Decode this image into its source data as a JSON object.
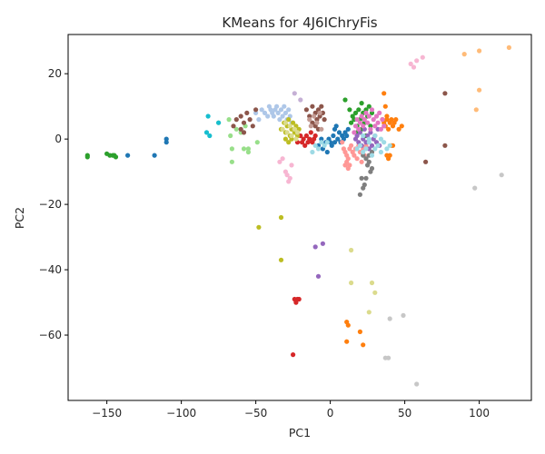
{
  "chart_data": {
    "type": "scatter",
    "title": "KMeans for 4J6IChryFis",
    "xlabel": "PC1",
    "ylabel": "PC2",
    "xlim": [
      -176,
      135
    ],
    "ylim": [
      -80,
      32
    ],
    "xticks": [
      -150,
      -100,
      -50,
      0,
      50,
      100
    ],
    "yticks": [
      -60,
      -40,
      -20,
      0,
      20
    ],
    "grid": false,
    "legend": "none",
    "series": [
      {
        "color": "#1f77b4",
        "points": [
          [
            -136,
            -5
          ],
          [
            -118,
            -5
          ],
          [
            -110,
            -1
          ],
          [
            -110,
            0
          ],
          [
            -8,
            -2
          ],
          [
            -6,
            0
          ],
          [
            -5,
            -3
          ],
          [
            -3,
            -1
          ],
          [
            -2,
            -4
          ],
          [
            -1,
            0
          ],
          [
            0,
            -1
          ],
          [
            1,
            -2
          ],
          [
            2,
            1
          ],
          [
            3,
            -1
          ],
          [
            3,
            3
          ],
          [
            4,
            4
          ],
          [
            5,
            0
          ],
          [
            6,
            2
          ],
          [
            7,
            -1
          ],
          [
            8,
            1
          ],
          [
            9,
            0
          ],
          [
            10,
            2
          ],
          [
            11,
            1
          ],
          [
            12,
            3
          ]
        ]
      },
      {
        "color": "#aec7e8",
        "points": [
          [
            -50,
            8
          ],
          [
            -48,
            6
          ],
          [
            -46,
            9
          ],
          [
            -44,
            8
          ],
          [
            -42,
            7
          ],
          [
            -41,
            10
          ],
          [
            -40,
            9
          ],
          [
            -39,
            8
          ],
          [
            -38,
            7
          ],
          [
            -37,
            9
          ],
          [
            -36,
            10
          ],
          [
            -35,
            8
          ],
          [
            -34,
            6
          ],
          [
            -33,
            9
          ],
          [
            -32,
            7
          ],
          [
            -31,
            10
          ],
          [
            -30,
            8
          ],
          [
            -29,
            6
          ],
          [
            -28,
            9
          ],
          [
            -27,
            7
          ],
          [
            -26,
            5
          ]
        ]
      },
      {
        "color": "#ff7f0e",
        "points": [
          [
            11,
            -56
          ],
          [
            12,
            -57
          ],
          [
            11,
            -62
          ],
          [
            20,
            -59
          ],
          [
            22,
            -63
          ],
          [
            36,
            14
          ],
          [
            37,
            10
          ],
          [
            38,
            7
          ],
          [
            35,
            6
          ],
          [
            36,
            5
          ],
          [
            37,
            4
          ],
          [
            38,
            6
          ],
          [
            39,
            3
          ],
          [
            40,
            5
          ],
          [
            41,
            6
          ],
          [
            42,
            4
          ],
          [
            43,
            5
          ],
          [
            44,
            6
          ],
          [
            46,
            3
          ],
          [
            48,
            4
          ],
          [
            38,
            -5
          ],
          [
            39,
            -6
          ],
          [
            40,
            -5
          ],
          [
            41,
            -2
          ],
          [
            42,
            -2
          ]
        ]
      },
      {
        "color": "#ffbb78",
        "points": [
          [
            90,
            26
          ],
          [
            100,
            27
          ],
          [
            120,
            28
          ],
          [
            100,
            15
          ],
          [
            98,
            9
          ]
        ]
      },
      {
        "color": "#2ca02c",
        "points": [
          [
            -163,
            -5
          ],
          [
            -163,
            -5.5
          ],
          [
            -150,
            -4.5
          ],
          [
            -148,
            -5
          ],
          [
            -146,
            -5
          ],
          [
            -145,
            -5
          ],
          [
            -144,
            -5.5
          ],
          [
            10,
            12
          ],
          [
            13,
            9
          ],
          [
            14,
            5
          ],
          [
            15,
            7
          ],
          [
            16,
            6
          ],
          [
            17,
            8
          ],
          [
            18,
            4
          ],
          [
            19,
            9
          ],
          [
            20,
            6
          ],
          [
            21,
            11
          ],
          [
            22,
            8
          ],
          [
            23,
            5
          ],
          [
            24,
            9
          ],
          [
            25,
            7
          ],
          [
            26,
            10
          ],
          [
            27,
            4
          ],
          [
            28,
            8
          ],
          [
            18,
            2
          ],
          [
            21,
            3
          ],
          [
            24,
            1
          ]
        ]
      },
      {
        "color": "#98df8a",
        "points": [
          [
            -75,
            5
          ],
          [
            -68,
            6
          ],
          [
            -67,
            1
          ],
          [
            -66,
            -3
          ],
          [
            -66,
            -7
          ],
          [
            -63,
            3
          ],
          [
            -60,
            2
          ],
          [
            -58,
            -3
          ],
          [
            -57,
            4
          ],
          [
            -55,
            -3
          ],
          [
            -55,
            -4
          ],
          [
            -49,
            -1
          ]
        ]
      },
      {
        "color": "#d62728",
        "points": [
          [
            -24,
            -49
          ],
          [
            -23,
            -50
          ],
          [
            -22,
            -49
          ],
          [
            -21,
            -49
          ],
          [
            -25,
            -66
          ],
          [
            -22,
            -1
          ],
          [
            -20,
            1
          ],
          [
            -19,
            -1
          ],
          [
            -18,
            0
          ],
          [
            -17,
            -2
          ],
          [
            -16,
            1
          ],
          [
            -15,
            -1
          ],
          [
            -14,
            0
          ],
          [
            -13,
            2
          ],
          [
            -12,
            -1
          ],
          [
            -11,
            0
          ],
          [
            -10,
            1
          ]
        ]
      },
      {
        "color": "#ff9896",
        "points": [
          [
            8,
            -1
          ],
          [
            9,
            -3
          ],
          [
            10,
            -4
          ],
          [
            11,
            -5
          ],
          [
            12,
            -6
          ],
          [
            13,
            -3
          ],
          [
            14,
            -2
          ],
          [
            15,
            -4
          ],
          [
            16,
            -5
          ],
          [
            17,
            -3
          ],
          [
            18,
            -6
          ],
          [
            19,
            -2
          ],
          [
            20,
            -4
          ],
          [
            21,
            -7
          ],
          [
            22,
            -3
          ],
          [
            23,
            -5
          ],
          [
            24,
            -2
          ],
          [
            10,
            -8
          ],
          [
            11,
            -7
          ],
          [
            12,
            -9
          ],
          [
            13,
            -8
          ]
        ]
      },
      {
        "color": "#9467bd",
        "points": [
          [
            -10,
            -33
          ],
          [
            -5,
            -32
          ],
          [
            -8,
            -42
          ],
          [
            17,
            0
          ],
          [
            18,
            1
          ],
          [
            19,
            -1
          ],
          [
            20,
            2
          ],
          [
            21,
            -2
          ],
          [
            22,
            0
          ],
          [
            23,
            3
          ],
          [
            24,
            -1
          ],
          [
            25,
            1
          ],
          [
            26,
            -3
          ],
          [
            27,
            2
          ],
          [
            28,
            -2
          ],
          [
            29,
            0
          ],
          [
            30,
            1
          ],
          [
            31,
            -1
          ],
          [
            32,
            3
          ],
          [
            33,
            -2
          ]
        ]
      },
      {
        "color": "#c5b0d5",
        "points": [
          [
            -24,
            14
          ],
          [
            -20,
            12
          ]
        ]
      },
      {
        "color": "#8c564b",
        "points": [
          [
            77,
            14
          ],
          [
            77,
            -2
          ],
          [
            64,
            -7
          ],
          [
            -65,
            4
          ],
          [
            -63,
            6
          ],
          [
            -60,
            7
          ],
          [
            -58,
            5
          ],
          [
            -56,
            8
          ],
          [
            -54,
            6
          ],
          [
            -52,
            4
          ],
          [
            -50,
            9
          ],
          [
            -60,
            3
          ],
          [
            -58,
            2
          ],
          [
            -16,
            9
          ],
          [
            -14,
            7
          ],
          [
            -12,
            10
          ],
          [
            -10,
            8
          ],
          [
            -9,
            6
          ],
          [
            -8,
            9
          ],
          [
            -7,
            7
          ],
          [
            -6,
            10
          ],
          [
            -5,
            8
          ],
          [
            -4,
            6
          ],
          [
            -12,
            5
          ],
          [
            -10,
            4
          ],
          [
            -8,
            3
          ]
        ]
      },
      {
        "color": "#c49c94",
        "points": [
          [
            -14,
            6
          ],
          [
            -13,
            4
          ],
          [
            -11,
            7
          ],
          [
            -9,
            5
          ],
          [
            -7,
            8
          ],
          [
            -6,
            3
          ]
        ]
      },
      {
        "color": "#e377c2",
        "points": [
          [
            16,
            2
          ],
          [
            17,
            4
          ],
          [
            18,
            6
          ],
          [
            19,
            3
          ],
          [
            20,
            5
          ],
          [
            21,
            7
          ],
          [
            22,
            4
          ],
          [
            23,
            6
          ],
          [
            24,
            8
          ],
          [
            25,
            5
          ],
          [
            26,
            7
          ],
          [
            27,
            3
          ],
          [
            28,
            9
          ],
          [
            29,
            6
          ],
          [
            30,
            4
          ],
          [
            31,
            7
          ],
          [
            32,
            5
          ],
          [
            33,
            8
          ],
          [
            34,
            3
          ],
          [
            35,
            6
          ],
          [
            36,
            4
          ]
        ]
      },
      {
        "color": "#f7b6d2",
        "points": [
          [
            54,
            23
          ],
          [
            56,
            22
          ],
          [
            58,
            24
          ],
          [
            62,
            25
          ],
          [
            -34,
            -7
          ],
          [
            -32,
            -6
          ],
          [
            -30,
            -10
          ],
          [
            -29,
            -11
          ],
          [
            -28,
            -13
          ],
          [
            -27,
            -12
          ],
          [
            -26,
            -8
          ]
        ]
      },
      {
        "color": "#7f7f7f",
        "points": [
          [
            20,
            -17
          ],
          [
            21,
            -12
          ],
          [
            22,
            -15
          ],
          [
            23,
            -14
          ],
          [
            24,
            -12
          ],
          [
            25,
            -8
          ],
          [
            26,
            -7
          ],
          [
            27,
            -10
          ],
          [
            28,
            -9
          ],
          [
            22,
            -5
          ],
          [
            24,
            -6
          ],
          [
            26,
            -5
          ],
          [
            28,
            -4
          ]
        ]
      },
      {
        "color": "#c7c7c7",
        "points": [
          [
            115,
            -11
          ],
          [
            97,
            -15
          ],
          [
            58,
            -75
          ],
          [
            49,
            -54
          ],
          [
            40,
            -55
          ],
          [
            37,
            -67
          ],
          [
            39,
            -67
          ]
        ]
      },
      {
        "color": "#bcbd22",
        "points": [
          [
            -48,
            -27
          ],
          [
            -33,
            -24
          ],
          [
            -33,
            -37
          ],
          [
            -33,
            3
          ],
          [
            -31,
            5
          ],
          [
            -30,
            2
          ],
          [
            -29,
            4
          ],
          [
            -28,
            6
          ],
          [
            -27,
            1
          ],
          [
            -26,
            3
          ],
          [
            -25,
            5
          ],
          [
            -24,
            2
          ],
          [
            -23,
            4
          ],
          [
            -22,
            1
          ],
          [
            -21,
            3
          ],
          [
            -30,
            0
          ],
          [
            -28,
            -1
          ],
          [
            -26,
            0
          ]
        ]
      },
      {
        "color": "#dbdb8d",
        "points": [
          [
            14,
            -34
          ],
          [
            14,
            -44
          ],
          [
            28,
            -44
          ],
          [
            30,
            -47
          ],
          [
            26,
            -53
          ],
          [
            -32,
            3
          ],
          [
            -30,
            5
          ],
          [
            -29,
            2
          ],
          [
            -27,
            4
          ],
          [
            -26,
            1
          ],
          [
            -24,
            3
          ],
          [
            -23,
            0
          ],
          [
            -22,
            2
          ]
        ]
      },
      {
        "color": "#17becf",
        "points": [
          [
            -82,
            7
          ],
          [
            -83,
            2
          ],
          [
            -81,
            1
          ],
          [
            -75,
            5
          ]
        ]
      },
      {
        "color": "#9edae5",
        "points": [
          [
            -12,
            -4
          ],
          [
            -10,
            -2
          ],
          [
            -8,
            -3
          ],
          [
            -6,
            -1
          ],
          [
            -4,
            -2
          ],
          [
            -2,
            -1
          ],
          [
            18,
            -3
          ],
          [
            20,
            -2
          ],
          [
            22,
            -4
          ],
          [
            24,
            -3
          ],
          [
            26,
            -1
          ],
          [
            28,
            -5
          ],
          [
            30,
            -3
          ],
          [
            32,
            -2
          ],
          [
            34,
            -4
          ],
          [
            36,
            -1
          ],
          [
            38,
            -3
          ],
          [
            40,
            -2
          ],
          [
            22,
            1
          ],
          [
            26,
            0
          ],
          [
            30,
            1
          ],
          [
            34,
            0
          ]
        ]
      }
    ]
  }
}
